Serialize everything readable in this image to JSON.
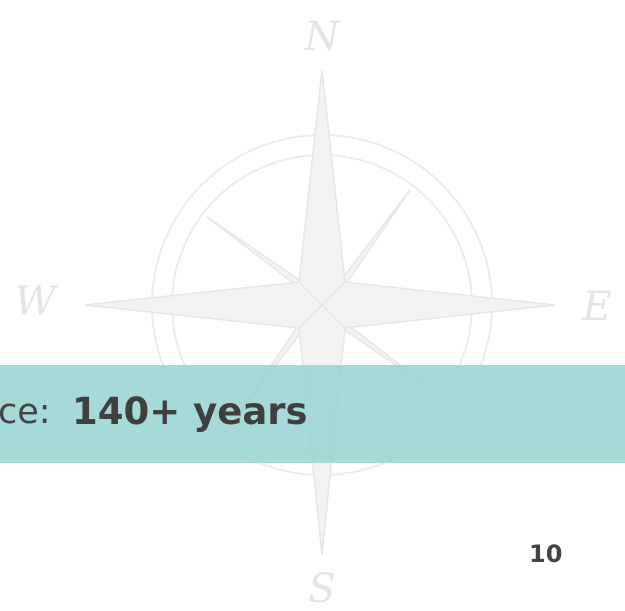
{
  "compass": {
    "north": "N",
    "west": "W",
    "east": "E",
    "south": "S"
  },
  "banner": {
    "label": "ce:",
    "value": "140+ years"
  },
  "page_number": "10"
}
